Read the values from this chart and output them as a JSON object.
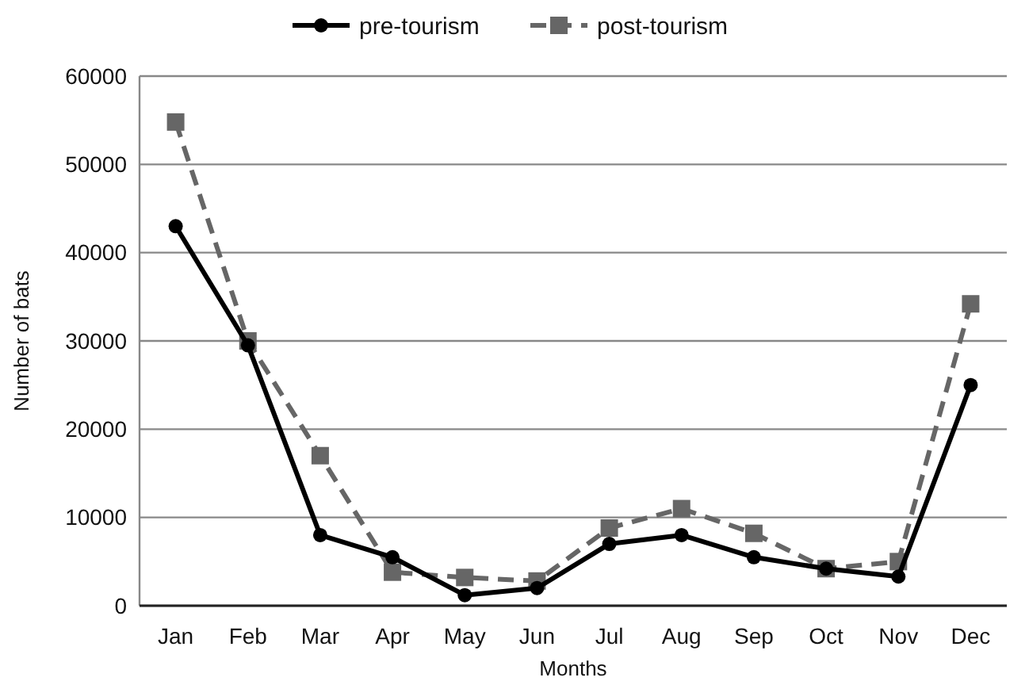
{
  "chart_data": {
    "type": "line",
    "xlabel": "Months",
    "ylabel": "Number of bats",
    "categories": [
      "Jan",
      "Feb",
      "Mar",
      "Apr",
      "May",
      "Jun",
      "Jul",
      "Aug",
      "Sep",
      "Oct",
      "Nov",
      "Dec"
    ],
    "ylim": [
      0,
      60000
    ],
    "yticks": [
      0,
      10000,
      20000,
      30000,
      40000,
      50000,
      60000
    ],
    "grid": "y",
    "legend": "top",
    "series": [
      {
        "name": "pre-tourism",
        "color": "#000000",
        "marker": "circle",
        "line_style": "solid",
        "values": [
          43000,
          29500,
          8000,
          5500,
          1200,
          2000,
          7000,
          8000,
          5500,
          4200,
          3300,
          25000
        ]
      },
      {
        "name": "post-tourism",
        "color": "#666666",
        "marker": "square",
        "line_style": "dashed",
        "values": [
          54800,
          30000,
          17000,
          3800,
          3200,
          2800,
          8800,
          11000,
          8200,
          4200,
          5000,
          34200
        ]
      }
    ]
  }
}
